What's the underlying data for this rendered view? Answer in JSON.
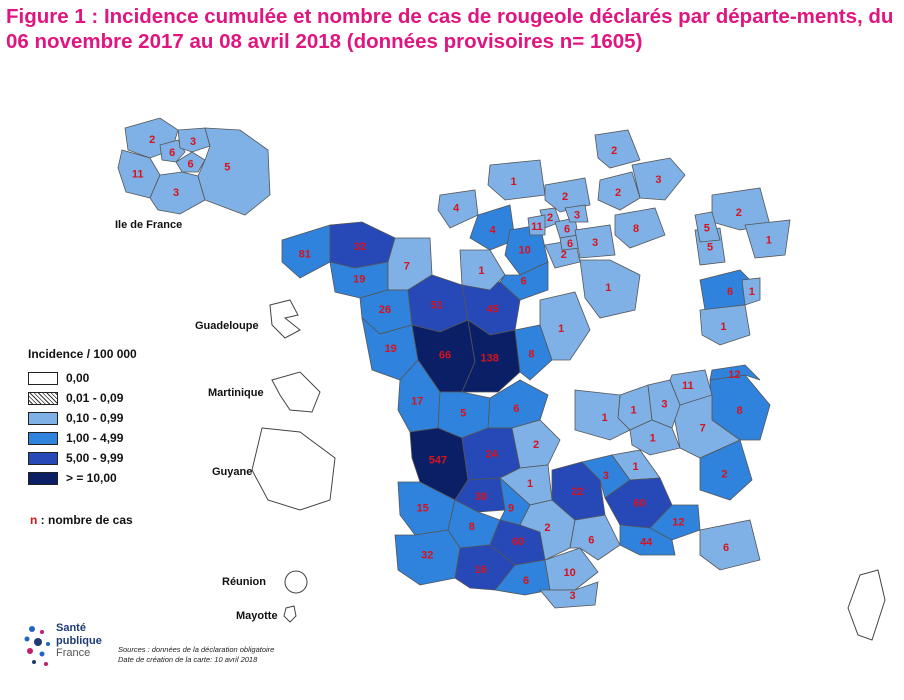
{
  "title": "Figure 1 : Incidence cumulée et nombre de cas de rougeole déclarés par départe-ments, du 06 novembre 2017 au 08 avril 2018 (données provisoires n= 1605)",
  "overseas_labels": {
    "idf": "Ile de France",
    "guadeloupe": "Guadeloupe",
    "martinique": "Martinique",
    "guyane": "Guyane",
    "reunion": "Réunion",
    "mayotte": "Mayotte"
  },
  "legend": {
    "title": "Incidence / 100 000",
    "classes": [
      {
        "label": "0,00",
        "color": "#ffffff",
        "pattern": false
      },
      {
        "label": "0,01 - 0,09",
        "color": "#ffffff",
        "pattern": true
      },
      {
        "label": "0,10 - 0,99",
        "color": "#7fb1e6",
        "pattern": false
      },
      {
        "label": "1,00 - 4,99",
        "color": "#2f83dc",
        "pattern": false
      },
      {
        "label": "5,00 - 9,99",
        "color": "#2749b8",
        "pattern": false
      },
      {
        "label": "> = 10,00",
        "color": "#0b1f66",
        "pattern": false
      }
    ],
    "cases_note_n": "n",
    "cases_note_text": " : nombre de cas"
  },
  "sources": {
    "line1": "Sources : données de la déclaration obligatoire",
    "line2": "Date de création de la carte: 10 avril 2018"
  },
  "logo": {
    "line1": "Santé",
    "line2": "publique",
    "line3": "France"
  },
  "colors": {
    "title": "#e0157f",
    "case_number": "#d8121c",
    "border": "#555555"
  },
  "idf_regions": [
    {
      "cls": 2,
      "n": "2"
    },
    {
      "cls": 2,
      "n": "11"
    },
    {
      "cls": 2,
      "n": "6"
    },
    {
      "cls": 2,
      "n": "3"
    },
    {
      "cls": 2,
      "n": "6"
    },
    {
      "cls": 2,
      "n": "3"
    },
    {
      "cls": 2,
      "n": "5"
    }
  ],
  "departments": [
    {
      "cls": 3,
      "n": "81"
    },
    {
      "cls": 4,
      "n": "32"
    },
    {
      "cls": 3,
      "n": "19"
    },
    {
      "cls": 2,
      "n": "7"
    },
    {
      "cls": 3,
      "n": "26"
    },
    {
      "cls": 4,
      "n": "51"
    },
    {
      "cls": 4,
      "n": "45"
    },
    {
      "cls": 3,
      "n": "19"
    },
    {
      "cls": 5,
      "n": "66"
    },
    {
      "cls": 5,
      "n": "138"
    },
    {
      "cls": 3,
      "n": "8"
    },
    {
      "cls": 2,
      "n": "1"
    },
    {
      "cls": 3,
      "n": "17"
    },
    {
      "cls": 3,
      "n": "5"
    },
    {
      "cls": 3,
      "n": "6"
    },
    {
      "cls": 5,
      "n": "547"
    },
    {
      "cls": 4,
      "n": "24"
    },
    {
      "cls": 2,
      "n": "2"
    },
    {
      "cls": 2,
      "n": "1"
    },
    {
      "cls": 4,
      "n": "30"
    },
    {
      "cls": 3,
      "n": "9"
    },
    {
      "cls": 3,
      "n": "15"
    },
    {
      "cls": 3,
      "n": "8"
    },
    {
      "cls": 3,
      "n": "32"
    },
    {
      "cls": 4,
      "n": "60"
    },
    {
      "cls": 4,
      "n": "16"
    },
    {
      "cls": 3,
      "n": "6"
    },
    {
      "cls": 2,
      "n": "10"
    },
    {
      "cls": 2,
      "n": "3"
    },
    {
      "cls": 2,
      "n": "2"
    },
    {
      "cls": 2,
      "n": "6"
    },
    {
      "cls": 4,
      "n": "22"
    },
    {
      "cls": 3,
      "n": "3"
    },
    {
      "cls": 2,
      "n": "1"
    },
    {
      "cls": 4,
      "n": "60"
    },
    {
      "cls": 3,
      "n": "12"
    },
    {
      "cls": 3,
      "n": "44"
    },
    {
      "cls": 2,
      "n": "6"
    },
    {
      "cls": 3,
      "n": "2"
    },
    {
      "cls": 3,
      "n": "8"
    },
    {
      "cls": 2,
      "n": "7"
    },
    {
      "cls": 3,
      "n": "12"
    },
    {
      "cls": 2,
      "n": "1"
    },
    {
      "cls": 2,
      "n": "3"
    },
    {
      "cls": 2,
      "n": "11"
    },
    {
      "cls": 2,
      "n": "1"
    },
    {
      "cls": 2,
      "n": "1"
    },
    {
      "cls": 2,
      "n": "1"
    },
    {
      "cls": 3,
      "n": "6"
    },
    {
      "cls": 2,
      "n": "1"
    },
    {
      "cls": 2,
      "n": "1"
    },
    {
      "cls": 2,
      "n": "5"
    },
    {
      "cls": 2,
      "n": "2"
    },
    {
      "cls": 2,
      "n": "4"
    },
    {
      "cls": 3,
      "n": "4"
    },
    {
      "cls": 2,
      "n": "1"
    },
    {
      "cls": 2,
      "n": "8"
    },
    {
      "cls": 2,
      "n": "3"
    },
    {
      "cls": 2,
      "n": "2"
    },
    {
      "cls": 2,
      "n": "2"
    },
    {
      "cls": 2,
      "n": "1"
    },
    {
      "cls": 2,
      "n": "2"
    },
    {
      "cls": 3,
      "n": "10"
    },
    {
      "cls": 3,
      "n": "6"
    },
    {
      "cls": 2,
      "n": "2"
    },
    {
      "cls": 2,
      "n": "11"
    },
    {
      "cls": 2,
      "n": "6"
    },
    {
      "cls": 2,
      "n": "6"
    },
    {
      "cls": 2,
      "n": "3"
    },
    {
      "cls": 2,
      "n": "3"
    },
    {
      "cls": 2,
      "n": "2"
    },
    {
      "cls": 2,
      "n": "1"
    },
    {
      "cls": 2,
      "n": "5"
    },
    {
      "cls": 2,
      "n": "1"
    }
  ]
}
